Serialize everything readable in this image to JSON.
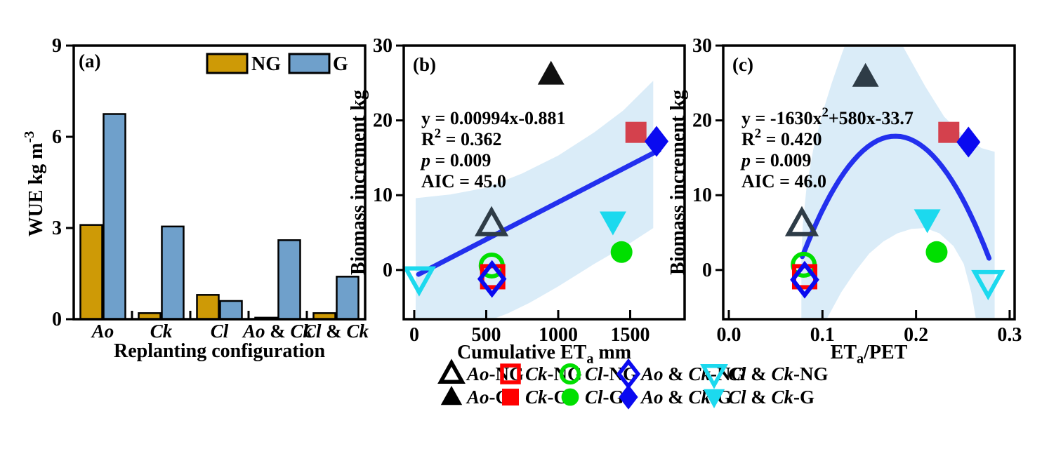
{
  "colors": {
    "gold": "#CE9A06",
    "steel": "#6FA0CB",
    "band": "#DAECF8",
    "fit": "#2330EE",
    "red": "#FF0000",
    "crimson": "#D4414D",
    "green": "#00DF00",
    "blue": "#0A0AF0",
    "cyan": "#1CD9EE",
    "slate": "#2E3C47",
    "nearblack": "#111111",
    "black": "#000000"
  },
  "chart_data": [
    {
      "panel": "a",
      "type": "bar",
      "label": "(a)",
      "xlabel": [
        {
          "t": "Replanting configuration"
        }
      ],
      "ylabel": [
        {
          "t": "WUE kg m"
        },
        {
          "t": "-3",
          "sup": true
        }
      ],
      "categories": [
        [
          {
            "t": "Ao",
            "i": true
          }
        ],
        [
          {
            "t": "Ck",
            "i": true
          }
        ],
        [
          {
            "t": "Cl",
            "i": true
          }
        ],
        [
          {
            "t": "Ao",
            "i": true
          },
          {
            "t": " & "
          },
          {
            "t": "Ck",
            "i": true
          }
        ],
        [
          {
            "t": "Cl",
            "i": true
          },
          {
            "t": " & "
          },
          {
            "t": "Ck",
            "i": true
          }
        ]
      ],
      "ylim": [
        0,
        9
      ],
      "yticks": [
        {
          "v": 0,
          "l": "0"
        },
        {
          "v": 3,
          "l": "3"
        },
        {
          "v": 6,
          "l": "6"
        },
        {
          "v": 9,
          "l": "9"
        }
      ],
      "series": [
        {
          "name": "NG",
          "color": "gold",
          "values": [
            3.1,
            0.2,
            0.8,
            0.05,
            0.2
          ]
        },
        {
          "name": "G",
          "color": "steel",
          "values": [
            6.75,
            3.05,
            0.6,
            2.6,
            1.4
          ]
        }
      ],
      "legend": {
        "items": [
          {
            "label": "NG",
            "color": "gold"
          },
          {
            "label": "G",
            "color": "steel"
          }
        ]
      }
    },
    {
      "panel": "b",
      "type": "scatter",
      "label": "(b)",
      "xlabel": [
        {
          "t": "Cumulative ET"
        },
        {
          "t": "a",
          "sub": true
        },
        {
          "t": " mm"
        }
      ],
      "ylabel": [
        {
          "t": "Biomass increment kg"
        }
      ],
      "xlim": [
        -73,
        1878
      ],
      "ylim": [
        -6.58,
        30
      ],
      "xticks": [
        {
          "v": 0,
          "l": "0"
        },
        {
          "v": 500,
          "l": "500"
        },
        {
          "v": 1000,
          "l": "1000"
        },
        {
          "v": 1500,
          "l": "1500"
        }
      ],
      "yticks": [
        {
          "v": 0,
          "l": "0"
        },
        {
          "v": 10,
          "l": "10"
        },
        {
          "v": 20,
          "l": "20"
        },
        {
          "v": 30,
          "l": "30"
        }
      ],
      "stats": [
        [
          {
            "t": "y = 0.00994x-0.881"
          }
        ],
        [
          {
            "t": "R"
          },
          {
            "t": "2",
            "sup": true
          },
          {
            "t": " = 0.362"
          }
        ],
        [
          {
            "t": "p",
            "i": true
          },
          {
            "t": " = 0.009"
          }
        ],
        [
          {
            "t": "AIC = 45.0"
          }
        ]
      ],
      "fit": {
        "kind": "linear",
        "slope": 0.00994,
        "intercept": -0.881,
        "xrange": [
          30,
          1700
        ]
      },
      "band": [
        [
          10,
          9.6
        ],
        [
          250,
          10.1
        ],
        [
          500,
          11.0
        ],
        [
          750,
          12.9
        ],
        [
          1000,
          15.3
        ],
        [
          1250,
          18.4
        ],
        [
          1450,
          21.3
        ],
        [
          1660,
          25.3
        ],
        [
          1660,
          5.6
        ],
        [
          1500,
          3.6
        ],
        [
          1250,
          0.8
        ],
        [
          1000,
          -2.2
        ],
        [
          800,
          -4.4
        ],
        [
          650,
          -5.8
        ],
        [
          500,
          -6.9
        ],
        [
          350,
          -7.6
        ],
        [
          10,
          -8.0
        ]
      ],
      "points": [
        {
          "name": "Cl & Ck-NG",
          "marker": "invtriangle",
          "color": "cyan",
          "filled": false,
          "x": 34,
          "y": -1.1
        },
        {
          "name": "Ao-NG",
          "marker": "triangle",
          "color": "slate",
          "filled": false,
          "x": 537,
          "y": 6.1
        },
        {
          "name": "Cl-NG",
          "marker": "circle",
          "color": "green",
          "filled": false,
          "x": 538,
          "y": 0.6
        },
        {
          "name": "Ck-NG",
          "marker": "square",
          "color": "red",
          "filled": false,
          "x": 545,
          "y": -0.9
        },
        {
          "name": "Ao & Ck-NG",
          "marker": "diamond",
          "color": "blue",
          "filled": false,
          "x": 540,
          "y": -1.2
        },
        {
          "name": "Ao-G",
          "marker": "triangle",
          "color": "nearblack",
          "filled": true,
          "x": 950,
          "y": 26.1
        },
        {
          "name": "Ck-G",
          "marker": "square",
          "color": "crimson",
          "filled": true,
          "x": 1540,
          "y": 18.4
        },
        {
          "name": "Ao & Ck-G",
          "marker": "diamond",
          "color": "blue",
          "filled": true,
          "x": 1683,
          "y": 17.2
        },
        {
          "name": "Cl & Ck-G",
          "marker": "invtriangle",
          "color": "cyan",
          "filled": true,
          "x": 1380,
          "y": 6.5
        },
        {
          "name": "Cl-G",
          "marker": "circle",
          "color": "green",
          "filled": true,
          "x": 1440,
          "y": 2.4
        }
      ]
    },
    {
      "panel": "c",
      "type": "scatter",
      "label": "(c)",
      "xlabel": [
        {
          "t": "ET"
        },
        {
          "t": "a",
          "sub": true
        },
        {
          "t": "/PET"
        }
      ],
      "ylabel": [
        {
          "t": "Biomass increment kg"
        }
      ],
      "xlim": [
        -0.006,
        0.3053
      ],
      "ylim": [
        -6.58,
        30
      ],
      "xticks": [
        {
          "v": 0,
          "l": "0.0"
        },
        {
          "v": 0.1,
          "l": "0.1"
        },
        {
          "v": 0.2,
          "l": "0.2"
        },
        {
          "v": 0.3,
          "l": "0.3"
        }
      ],
      "yticks": [
        {
          "v": 0,
          "l": "0"
        },
        {
          "v": 10,
          "l": "10"
        },
        {
          "v": 20,
          "l": "20"
        },
        {
          "v": 30,
          "l": "30"
        }
      ],
      "stats": [
        [
          {
            "t": "y = -1630x"
          },
          {
            "t": "2",
            "sup": true
          },
          {
            "t": "+580x-33.7"
          }
        ],
        [
          {
            "t": "R"
          },
          {
            "t": "2",
            "sup": true
          },
          {
            "t": " = 0.420"
          }
        ],
        [
          {
            "t": "p",
            "i": true
          },
          {
            "t": " = 0.009"
          }
        ],
        [
          {
            "t": "AIC = 46.0"
          }
        ]
      ],
      "fit": {
        "kind": "quadratic",
        "a": -1630,
        "b": 580,
        "c": -33.7,
        "xrange": [
          0.0785,
          0.278
        ]
      },
      "band": [
        [
          0.0775,
          -8
        ],
        [
          0.0775,
          2
        ],
        [
          0.079,
          6
        ],
        [
          0.083,
          11
        ],
        [
          0.09,
          16
        ],
        [
          0.1,
          21
        ],
        [
          0.11,
          25
        ],
        [
          0.121,
          29
        ],
        [
          0.13,
          32
        ],
        [
          0.15,
          34.5
        ],
        [
          0.17,
          33.5
        ],
        [
          0.19,
          29
        ],
        [
          0.21,
          24.5
        ],
        [
          0.23,
          20.5
        ],
        [
          0.25,
          18
        ],
        [
          0.27,
          16.3
        ],
        [
          0.284,
          15.8
        ],
        [
          0.284,
          -8
        ],
        [
          0.266,
          -8
        ],
        [
          0.259,
          -3
        ],
        [
          0.251,
          0.8
        ],
        [
          0.24,
          3.2
        ],
        [
          0.225,
          4.9
        ],
        [
          0.21,
          5.6
        ],
        [
          0.195,
          5.5
        ],
        [
          0.18,
          4.9
        ],
        [
          0.165,
          3.8
        ],
        [
          0.15,
          2.2
        ],
        [
          0.135,
          -0.2
        ],
        [
          0.12,
          -3
        ],
        [
          0.107,
          -6
        ],
        [
          0.098,
          -8
        ],
        [
          0.086,
          -8
        ]
      ],
      "points": [
        {
          "name": "Cl & Ck-NG",
          "marker": "invtriangle",
          "color": "cyan",
          "filled": false,
          "x": 0.277,
          "y": -1.6
        },
        {
          "name": "Ao-NG",
          "marker": "triangle",
          "color": "slate",
          "filled": false,
          "x": 0.078,
          "y": 6.1
        },
        {
          "name": "Cl-NG",
          "marker": "circle",
          "color": "green",
          "filled": false,
          "x": 0.08,
          "y": 0.7
        },
        {
          "name": "Ck-NG",
          "marker": "square",
          "color": "red",
          "filled": false,
          "x": 0.081,
          "y": -0.9
        },
        {
          "name": "Ao & Ck-NG",
          "marker": "diamond",
          "color": "blue",
          "filled": false,
          "x": 0.081,
          "y": -1.3
        },
        {
          "name": "Ao-G",
          "marker": "triangle",
          "color": "slate",
          "filled": true,
          "x": 0.146,
          "y": 25.8
        },
        {
          "name": "Ck-G",
          "marker": "square",
          "color": "crimson",
          "filled": true,
          "x": 0.235,
          "y": 18.4
        },
        {
          "name": "Ao & Ck-G",
          "marker": "diamond",
          "color": "blue",
          "filled": true,
          "x": 0.256,
          "y": 17.1
        },
        {
          "name": "Cl & Ck-G",
          "marker": "invtriangle",
          "color": "cyan",
          "filled": true,
          "x": 0.212,
          "y": 6.8
        },
        {
          "name": "Cl-G",
          "marker": "circle",
          "color": "green",
          "filled": true,
          "x": 0.222,
          "y": 2.4
        }
      ]
    }
  ],
  "figure_legend": {
    "rows": [
      [
        {
          "marker": "triangle",
          "color": "black",
          "filled": false,
          "mx": 643,
          "lx": 665,
          "label": [
            {
              "t": "Ao",
              "i": true
            },
            {
              "t": "-NG"
            }
          ]
        },
        {
          "marker": "square",
          "color": "red",
          "filled": false,
          "mx": 727,
          "lx": 748,
          "label": [
            {
              "t": "Ck",
              "i": true
            },
            {
              "t": "-NG"
            }
          ]
        },
        {
          "marker": "circle",
          "color": "green",
          "filled": false,
          "mx": 812,
          "lx": 833,
          "label": [
            {
              "t": "Cl",
              "i": true
            },
            {
              "t": "-NG"
            }
          ]
        },
        {
          "marker": "diamond",
          "color": "blue",
          "filled": false,
          "mx": 895,
          "lx": 913,
          "label": [
            {
              "t": "Ao",
              "i": true
            },
            {
              "t": " & "
            },
            {
              "t": "Ck",
              "i": true
            },
            {
              "t": "-NG"
            }
          ]
        },
        {
          "marker": "invtriangle",
          "color": "cyan",
          "filled": false,
          "mx": 1017,
          "lx": 1037,
          "label": [
            {
              "t": "Cl",
              "i": true
            },
            {
              "t": " & "
            },
            {
              "t": "Ck",
              "i": true
            },
            {
              "t": "-NG"
            }
          ]
        }
      ],
      [
        {
          "marker": "triangle",
          "color": "black",
          "filled": true,
          "mx": 643,
          "lx": 665,
          "label": [
            {
              "t": "Ao",
              "i": true
            },
            {
              "t": "-G"
            }
          ]
        },
        {
          "marker": "square",
          "color": "red",
          "filled": true,
          "mx": 727,
          "lx": 748,
          "label": [
            {
              "t": "Ck",
              "i": true
            },
            {
              "t": "-G"
            }
          ]
        },
        {
          "marker": "circle",
          "color": "green",
          "filled": true,
          "mx": 812,
          "lx": 833,
          "label": [
            {
              "t": "Cl",
              "i": true
            },
            {
              "t": "-G"
            }
          ]
        },
        {
          "marker": "diamond",
          "color": "blue",
          "filled": true,
          "mx": 895,
          "lx": 913,
          "label": [
            {
              "t": "Ao",
              "i": true
            },
            {
              "t": " & "
            },
            {
              "t": "Ck",
              "i": true
            },
            {
              "t": "-G"
            }
          ]
        },
        {
          "marker": "invtriangle",
          "color": "cyan",
          "filled": true,
          "mx": 1017,
          "lx": 1037,
          "label": [
            {
              "t": "Cl",
              "i": true
            },
            {
              "t": " & "
            },
            {
              "t": "Ck",
              "i": true
            },
            {
              "t": "-G"
            }
          ]
        }
      ]
    ]
  }
}
